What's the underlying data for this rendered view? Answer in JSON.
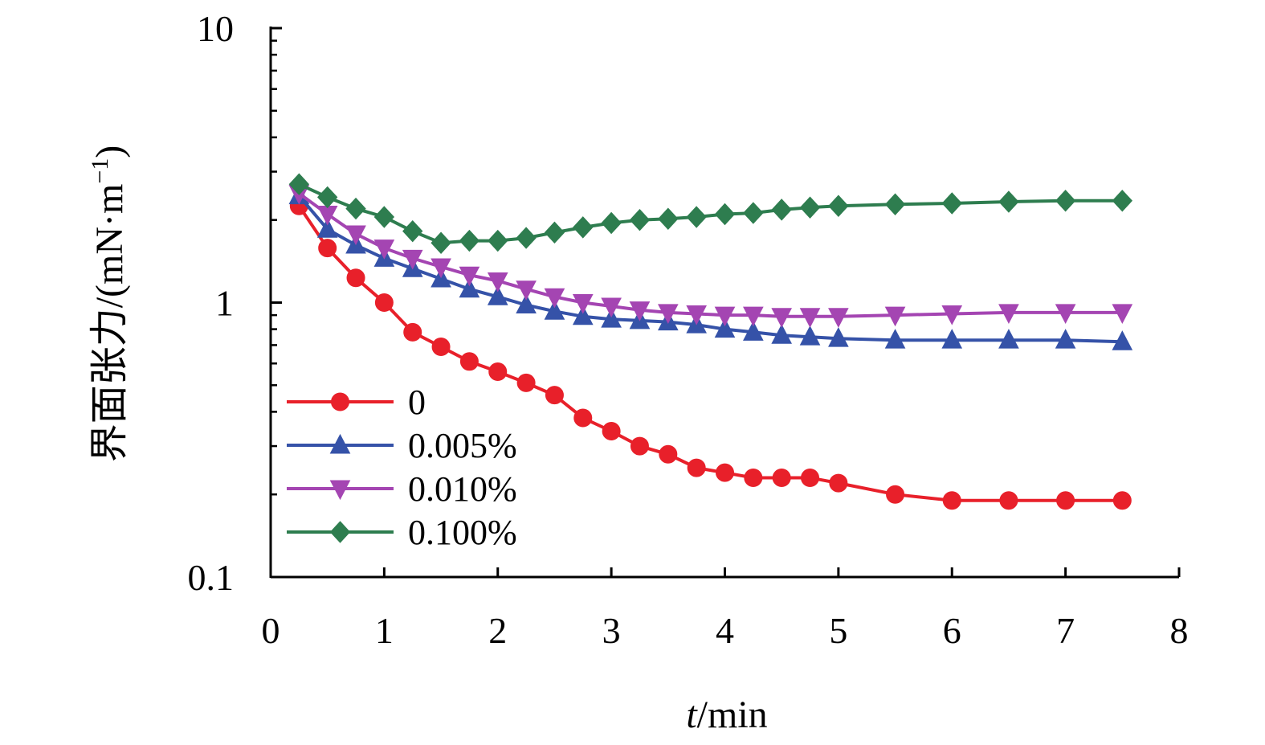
{
  "chart_data": {
    "type": "line",
    "xlabel_italic": "t",
    "xlabel_unit": "/min",
    "ylabel": "界面张力/(mN·m",
    "ylabel_sup": "−1",
    "ylabel_close": ")",
    "xlim": [
      0,
      8
    ],
    "ylim": [
      0.1,
      10
    ],
    "yscale": "log",
    "xticks": [
      0,
      1,
      2,
      3,
      4,
      5,
      6,
      7,
      8
    ],
    "xtick_labels": [
      "0",
      "1",
      "2",
      "3",
      "4",
      "5",
      "6",
      "7",
      "8"
    ],
    "yticks": [
      0.1,
      1,
      10
    ],
    "ytick_labels": [
      "0.1",
      "1",
      "10"
    ],
    "grid": false,
    "legend_position": "bottom-left",
    "series": [
      {
        "name": "0",
        "color": "#e8202a",
        "marker": "circle",
        "x": [
          0.25,
          0.5,
          0.75,
          1.0,
          1.25,
          1.5,
          1.75,
          2.0,
          2.25,
          2.5,
          2.75,
          3.0,
          3.25,
          3.5,
          3.75,
          4.0,
          4.25,
          4.5,
          4.75,
          5.0,
          5.5,
          6.0,
          6.5,
          7.0,
          7.5
        ],
        "y": [
          2.25,
          1.58,
          1.23,
          1.0,
          0.78,
          0.69,
          0.61,
          0.56,
          0.51,
          0.46,
          0.38,
          0.34,
          0.3,
          0.28,
          0.25,
          0.24,
          0.23,
          0.23,
          0.23,
          0.22,
          0.2,
          0.19,
          0.19,
          0.19,
          0.19
        ]
      },
      {
        "name": "0.005%",
        "color": "#3552a8",
        "marker": "triangle-up",
        "x": [
          0.25,
          0.5,
          0.75,
          1.0,
          1.25,
          1.5,
          1.75,
          2.0,
          2.25,
          2.5,
          2.75,
          3.0,
          3.25,
          3.5,
          3.75,
          4.0,
          4.25,
          4.5,
          4.75,
          5.0,
          5.5,
          6.0,
          6.5,
          7.0,
          7.5
        ],
        "y": [
          2.45,
          1.85,
          1.62,
          1.45,
          1.33,
          1.22,
          1.12,
          1.05,
          0.98,
          0.93,
          0.89,
          0.87,
          0.86,
          0.85,
          0.83,
          0.8,
          0.78,
          0.76,
          0.75,
          0.74,
          0.73,
          0.73,
          0.73,
          0.73,
          0.72
        ]
      },
      {
        "name": "0.010%",
        "color": "#a445b2",
        "marker": "triangle-down",
        "x": [
          0.25,
          0.5,
          0.75,
          1.0,
          1.25,
          1.5,
          1.75,
          2.0,
          2.25,
          2.5,
          2.75,
          3.0,
          3.25,
          3.5,
          3.75,
          4.0,
          4.25,
          4.5,
          4.75,
          5.0,
          5.5,
          6.0,
          6.5,
          7.0,
          7.5
        ],
        "y": [
          2.5,
          2.1,
          1.78,
          1.58,
          1.45,
          1.35,
          1.26,
          1.2,
          1.12,
          1.05,
          1.0,
          0.97,
          0.94,
          0.92,
          0.91,
          0.9,
          0.9,
          0.89,
          0.89,
          0.89,
          0.9,
          0.91,
          0.92,
          0.92,
          0.92
        ]
      },
      {
        "name": "0.100%",
        "color": "#2e7d4f",
        "marker": "diamond",
        "x": [
          0.25,
          0.5,
          0.75,
          1.0,
          1.25,
          1.5,
          1.75,
          2.0,
          2.25,
          2.5,
          2.75,
          3.0,
          3.25,
          3.5,
          3.75,
          4.0,
          4.25,
          4.5,
          4.75,
          5.0,
          5.5,
          6.0,
          6.5,
          7.0,
          7.5
        ],
        "y": [
          2.7,
          2.42,
          2.2,
          2.05,
          1.82,
          1.65,
          1.68,
          1.68,
          1.72,
          1.8,
          1.88,
          1.95,
          2.0,
          2.02,
          2.05,
          2.1,
          2.12,
          2.18,
          2.22,
          2.25,
          2.28,
          2.3,
          2.33,
          2.35,
          2.35
        ]
      }
    ]
  }
}
